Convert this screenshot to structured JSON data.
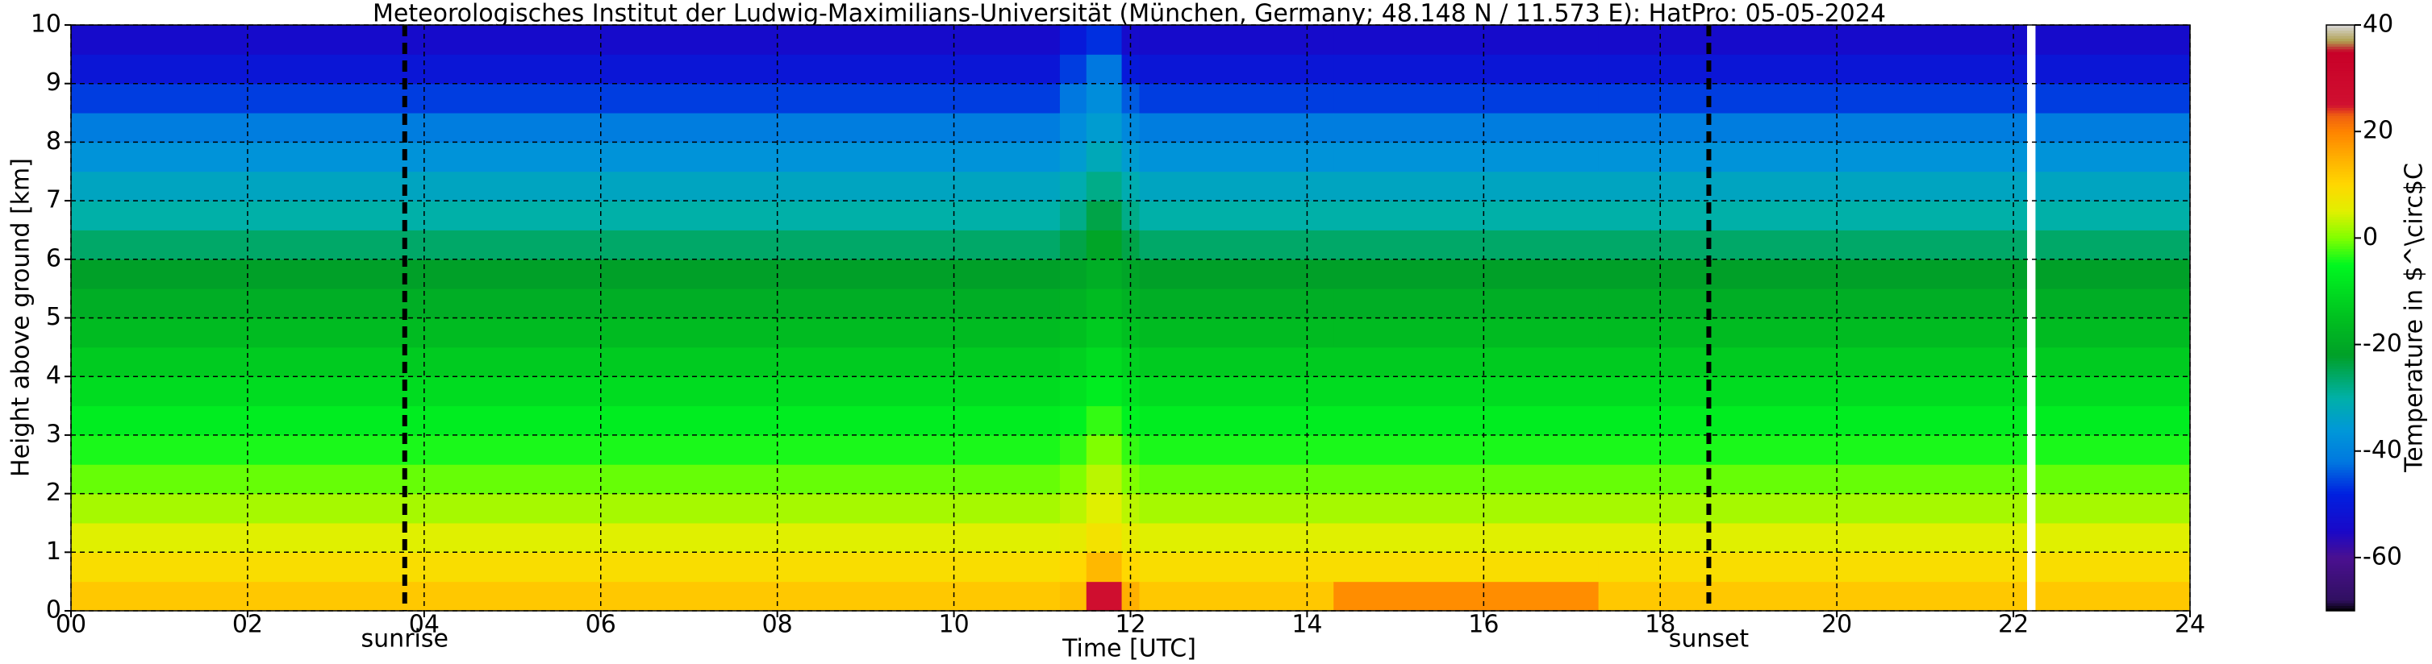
{
  "chart_data": {
    "type": "heatmap",
    "title": "Meteorologisches Institut der Ludwig-Maximilians-Universität (München, Germany; 48.148 N / 11.573 E):    HatPro: 05-05-2024",
    "x_label": "Time [UTC]",
    "y_label": "Height above ground [km]",
    "colorbar_label": "Temperature in $^\\circ$C",
    "x_edges": [
      0,
      11.2,
      11.5,
      11.9,
      12.1,
      14.3,
      17.3,
      22.15,
      22.25,
      24
    ],
    "y_edges": [
      0,
      0.5,
      1,
      1.5,
      2,
      2.5,
      3,
      3.5,
      4,
      4.5,
      5,
      5.5,
      6,
      6.5,
      7,
      7.5,
      8,
      8.5,
      9,
      9.5,
      10
    ],
    "values": [
      [
        12,
        9,
        5,
        2,
        -1,
        -4,
        -7,
        -10,
        -13,
        -16,
        -19,
        -22,
        -26,
        -30,
        -33,
        -37,
        -41,
        -46,
        -51,
        -54
      ],
      [
        13,
        10,
        6,
        3,
        0,
        -3,
        -6,
        -9,
        -12,
        -15,
        -18,
        -21,
        -24,
        -28,
        -31,
        -35,
        -38,
        -42,
        -46,
        -50
      ],
      [
        26,
        14,
        8,
        5,
        3,
        0,
        -3,
        -7,
        -10,
        -13,
        -16,
        -19,
        -21,
        -24,
        -28,
        -32,
        -35,
        -38,
        -42,
        -47
      ],
      [
        15,
        10,
        6,
        3,
        0,
        -3,
        -6,
        -9,
        -12,
        -15,
        -18,
        -21,
        -24,
        -28,
        -31,
        -35,
        -39,
        -44,
        -50,
        -54
      ],
      [
        12,
        9,
        5,
        2,
        -1,
        -4,
        -7,
        -10,
        -13,
        -16,
        -19,
        -22,
        -26,
        -30,
        -33,
        -37,
        -41,
        -46,
        -51,
        -54
      ],
      [
        19,
        9,
        5,
        2,
        -1,
        -4,
        -7,
        -10,
        -13,
        -16,
        -19,
        -22,
        -26,
        -30,
        -33,
        -37,
        -41,
        -46,
        -51,
        -54
      ],
      [
        12,
        9,
        5,
        2,
        -1,
        -4,
        -7,
        -10,
        -13,
        -16,
        -19,
        -22,
        -26,
        -30,
        -33,
        -37,
        -41,
        -46,
        -51,
        -54
      ],
      [
        null,
        null,
        null,
        null,
        null,
        null,
        null,
        null,
        null,
        null,
        null,
        null,
        null,
        null,
        null,
        null,
        null,
        null,
        null,
        null
      ],
      [
        12,
        9,
        5,
        2,
        -1,
        -4,
        -7,
        -10,
        -13,
        -16,
        -19,
        -22,
        -26,
        -30,
        -33,
        -37,
        -41,
        -46,
        -51,
        -54
      ]
    ],
    "xlim": [
      0,
      24
    ],
    "xticks": [
      {
        "value": 0,
        "label": "00"
      },
      {
        "value": 2,
        "label": "02"
      },
      {
        "value": 4,
        "label": "04"
      },
      {
        "value": 6,
        "label": "06"
      },
      {
        "value": 8,
        "label": "08"
      },
      10,
      12,
      14,
      16,
      18,
      20,
      22,
      24
    ],
    "ylim": [
      0,
      10
    ],
    "yticks": [
      0,
      1,
      2,
      3,
      4,
      5,
      6,
      7,
      8,
      9,
      10
    ],
    "zlim": [
      -70,
      40
    ],
    "zticks": [
      -60,
      -40,
      -20,
      0,
      20,
      40
    ],
    "colorscale": [
      {
        "value": -70,
        "color": "#000000"
      },
      {
        "value": -68,
        "color": "#301060"
      },
      {
        "value": -60,
        "color": "#4a1090"
      },
      {
        "value": -55,
        "color": "#1a08c8"
      },
      {
        "value": -48,
        "color": "#0020e0"
      },
      {
        "value": -42,
        "color": "#0078e0"
      },
      {
        "value": -36,
        "color": "#0098d8"
      },
      {
        "value": -30,
        "color": "#00b0a8"
      },
      {
        "value": -22,
        "color": "#00a028"
      },
      {
        "value": -15,
        "color": "#00c020"
      },
      {
        "value": -5,
        "color": "#00f820"
      },
      {
        "value": 0,
        "color": "#80ff00"
      },
      {
        "value": 5,
        "color": "#e0f000"
      },
      {
        "value": 10,
        "color": "#ffd800"
      },
      {
        "value": 15,
        "color": "#ffb000"
      },
      {
        "value": 20,
        "color": "#ff8400"
      },
      {
        "value": 23,
        "color": "#f06010"
      },
      {
        "value": 25,
        "color": "#d01030"
      },
      {
        "value": 35,
        "color": "#c80028"
      },
      {
        "value": 37,
        "color": "#b0a050"
      },
      {
        "value": 40,
        "color": "#d8d8d8"
      }
    ],
    "grid": true,
    "annotations": [
      {
        "text": "sunrise",
        "x": 3.78
      },
      {
        "text": "sunset",
        "x": 18.55
      }
    ]
  }
}
